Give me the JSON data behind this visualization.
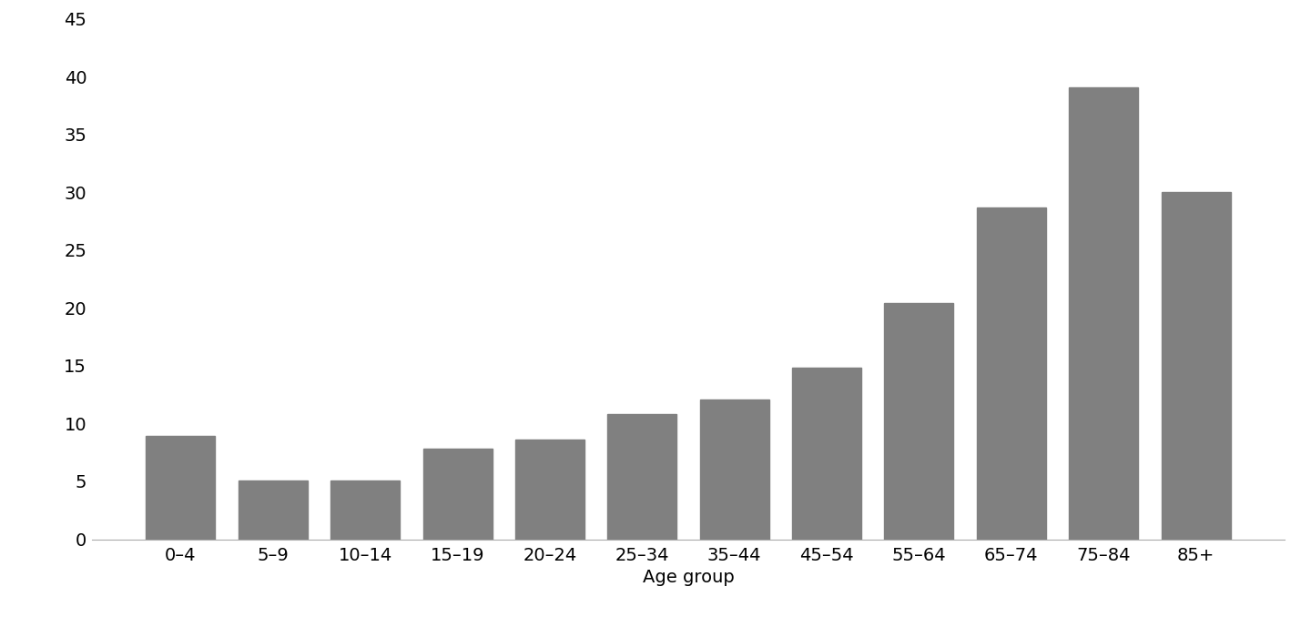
{
  "categories": [
    "0–4",
    "5–9",
    "10–14",
    "15–19",
    "20–24",
    "25–34",
    "35–44",
    "45–54",
    "55–64",
    "65–74",
    "75–84",
    "85+"
  ],
  "values": [
    8.9,
    5.1,
    5.1,
    7.8,
    8.6,
    10.8,
    12.1,
    14.8,
    20.4,
    28.7,
    39.1,
    30.0
  ],
  "bar_color": "#808080",
  "xlabel": "Age group",
  "ylabel": "",
  "ylim": [
    0,
    45
  ],
  "yticks": [
    0,
    5,
    10,
    15,
    20,
    25,
    30,
    35,
    40,
    45
  ],
  "background_color": "#ffffff",
  "bar_width": 0.75,
  "title": "",
  "tick_fontsize": 14,
  "label_fontsize": 14
}
